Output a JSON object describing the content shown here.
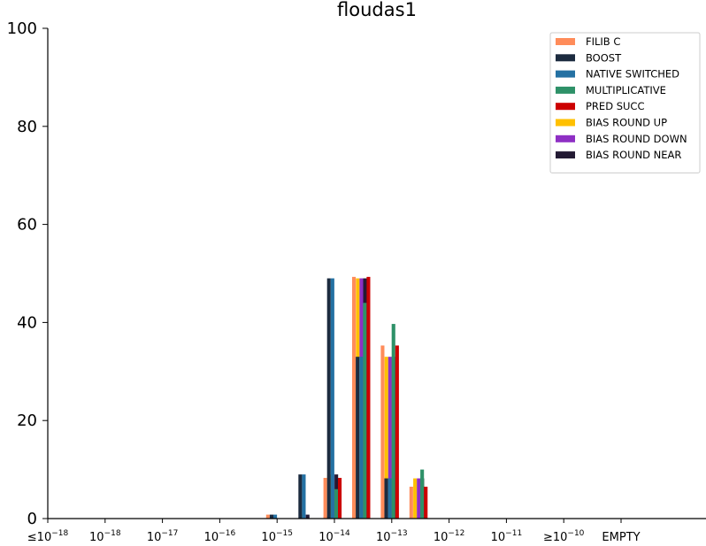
{
  "chart_data": {
    "type": "bar",
    "title": "floudas1",
    "xlabel": "",
    "ylabel": "",
    "ylim": [
      0,
      100
    ],
    "yticks": [
      "0",
      "20",
      "40",
      "60",
      "80",
      "100"
    ],
    "xtick_labels": [
      {
        "prefix": "≤",
        "base": "10",
        "exp": "−18"
      },
      {
        "prefix": "",
        "base": "10",
        "exp": "−18"
      },
      {
        "prefix": "",
        "base": "10",
        "exp": "−17"
      },
      {
        "prefix": "",
        "base": "10",
        "exp": "−16"
      },
      {
        "prefix": "",
        "base": "10",
        "exp": "−15"
      },
      {
        "prefix": "",
        "base": "10",
        "exp": "−14"
      },
      {
        "prefix": "",
        "base": "10",
        "exp": "−13"
      },
      {
        "prefix": "",
        "base": "10",
        "exp": "−12"
      },
      {
        "prefix": "",
        "base": "10",
        "exp": "−11"
      },
      {
        "prefix": "≥",
        "base": "10",
        "exp": "−10"
      },
      {
        "prefix": "",
        "base": "EMPTY",
        "exp": ""
      }
    ],
    "categories": [
      "≤10^-18",
      "10^-18",
      "10^-17",
      "10^-16",
      "10^-15",
      "10^-14",
      "10^-13",
      "10^-12",
      "10^-11",
      "≥10^-10",
      "EMPTY"
    ],
    "bins": [
      {
        "x": -15.0,
        "values": [
          0.8,
          0.8,
          0.8,
          0,
          0,
          0,
          0,
          0
        ]
      },
      {
        "x": -14.75,
        "values": [
          0,
          0,
          0,
          0,
          0,
          0.8,
          0.8,
          0.8
        ]
      },
      {
        "x": -14.5,
        "values": [
          0,
          9,
          9,
          0,
          0,
          0,
          0,
          0
        ]
      },
      {
        "x": -14.25,
        "values": [
          0,
          0,
          0,
          0,
          0.5,
          9,
          9,
          9
        ]
      },
      {
        "x": -14.0,
        "values": [
          8.3,
          49,
          49,
          6,
          8.3,
          0,
          0,
          0
        ]
      },
      {
        "x": -13.75,
        "values": [
          0,
          0,
          0,
          0,
          0,
          49,
          49,
          49
        ]
      },
      {
        "x": -13.5,
        "values": [
          49.3,
          33,
          33,
          44,
          49.3,
          0,
          0,
          0
        ]
      },
      {
        "x": -13.25,
        "values": [
          0,
          0,
          0,
          0,
          0,
          33,
          33,
          33
        ]
      },
      {
        "x": -13.0,
        "values": [
          35.3,
          8.2,
          8.2,
          39.7,
          35.3,
          0,
          0,
          0
        ]
      },
      {
        "x": -12.75,
        "values": [
          0,
          0,
          0,
          0,
          0,
          8.2,
          8.2,
          8.2
        ]
      },
      {
        "x": -12.5,
        "values": [
          6.5,
          0,
          0,
          10,
          6.5,
          0,
          0,
          0
        ]
      }
    ],
    "series": [
      {
        "name": "FILIB C",
        "color": "#ff8c5a"
      },
      {
        "name": "BOOST",
        "color": "#1c2b3f"
      },
      {
        "name": "NATIVE SWITCHED",
        "color": "#2471a3"
      },
      {
        "name": "MULTIPLICATIVE",
        "color": "#2e9168"
      },
      {
        "name": "PRED SUCC",
        "color": "#cc0000"
      },
      {
        "name": "BIAS ROUND UP",
        "color": "#ffc000"
      },
      {
        "name": "BIAS ROUND DOWN",
        "color": "#8e2fc4"
      },
      {
        "name": "BIAS ROUND NEAR",
        "color": "#231a33"
      }
    ],
    "legend_position": "top-right",
    "grid": false
  }
}
